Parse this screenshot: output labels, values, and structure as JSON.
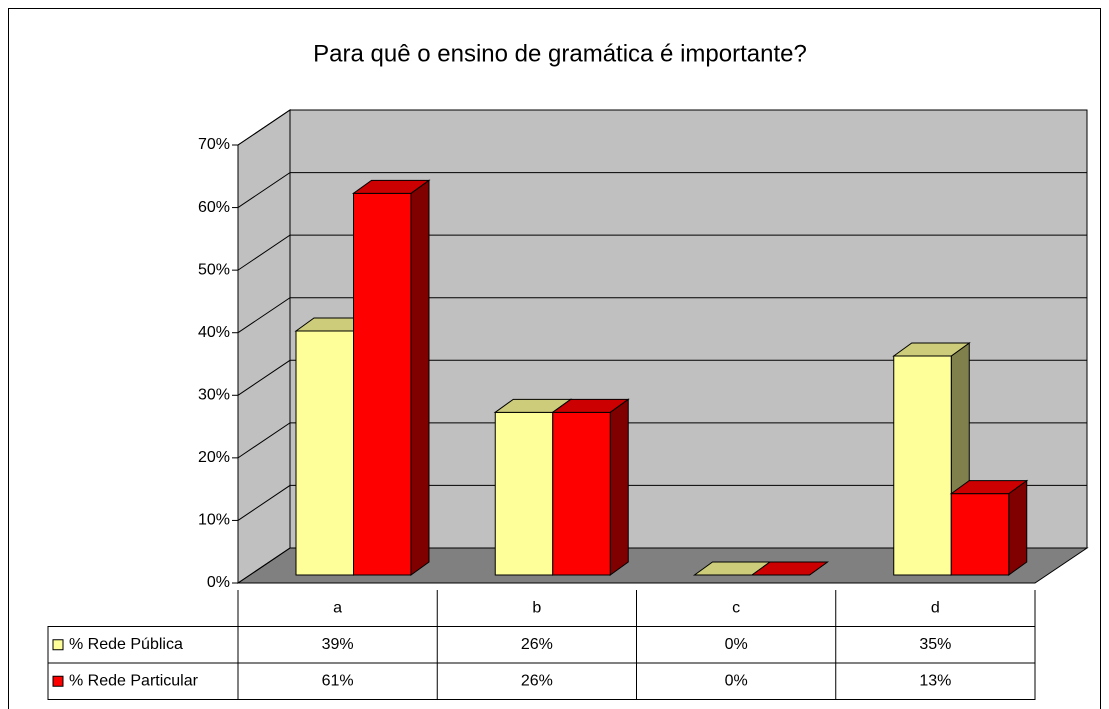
{
  "chart_data": {
    "type": "bar3d",
    "title": "Para quê o ensino de gramática é importante?",
    "categories": [
      "a",
      "b",
      "c",
      "d"
    ],
    "series": [
      {
        "name": "% Rede Pública",
        "color": "#ffff99",
        "values": [
          39,
          26,
          0,
          35
        ],
        "value_labels": [
          "39%",
          "26%",
          "0%",
          "35%"
        ]
      },
      {
        "name": "% Rede Particular",
        "color": "#ff0000",
        "values": [
          61,
          26,
          0,
          13
        ],
        "value_labels": [
          "61%",
          "26%",
          "0%",
          "13%"
        ]
      }
    ],
    "ylim": [
      0,
      70
    ],
    "yticks": [
      {
        "value": 0,
        "label": "0%"
      },
      {
        "value": 10,
        "label": "10%"
      },
      {
        "value": 20,
        "label": "20%"
      },
      {
        "value": 30,
        "label": "30%"
      },
      {
        "value": 40,
        "label": "40%"
      },
      {
        "value": 50,
        "label": "50%"
      },
      {
        "value": 60,
        "label": "60%"
      },
      {
        "value": 70,
        "label": "70%"
      }
    ],
    "grid": true
  }
}
